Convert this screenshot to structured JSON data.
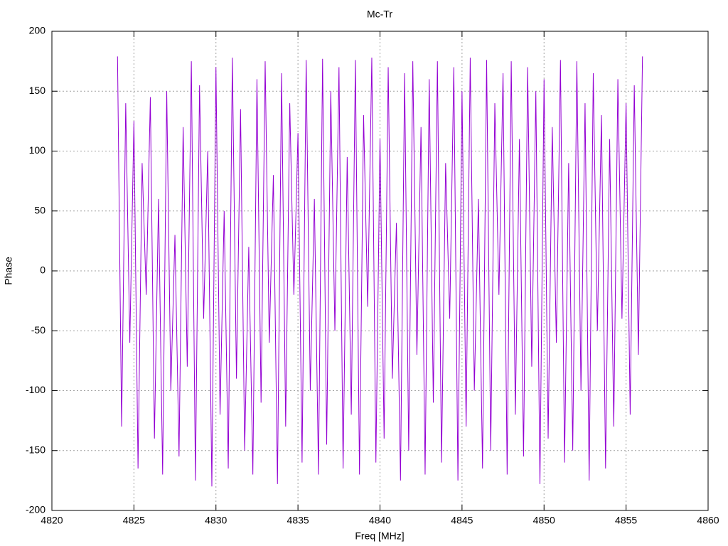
{
  "chart_data": {
    "type": "line",
    "title": "Mc-Tr",
    "x_label": "Freq [MHz]",
    "y_label": "Phase",
    "xlim": [
      4820,
      4860
    ],
    "xticks": [
      4820,
      4825,
      4830,
      4835,
      4840,
      4845,
      4850,
      4855,
      4860
    ],
    "ylim": [
      -200,
      200
    ],
    "yticks": [
      -200,
      -150,
      -100,
      -50,
      0,
      50,
      100,
      150,
      200
    ],
    "grid": true,
    "x": [
      4824,
      4824.25,
      4824.5,
      4824.75,
      4825,
      4825.25,
      4825.5,
      4825.75,
      4826,
      4826.25,
      4826.5,
      4826.75,
      4827,
      4827.25,
      4827.5,
      4827.75,
      4828,
      4828.25,
      4828.5,
      4828.75,
      4829,
      4829.25,
      4829.5,
      4829.75,
      4830,
      4830.25,
      4830.5,
      4830.75,
      4831,
      4831.25,
      4831.5,
      4831.75,
      4832,
      4832.25,
      4832.5,
      4832.75,
      4833,
      4833.25,
      4833.5,
      4833.75,
      4834,
      4834.25,
      4834.5,
      4834.75,
      4835,
      4835.25,
      4835.5,
      4835.75,
      4836,
      4836.25,
      4836.5,
      4836.75,
      4837,
      4837.25,
      4837.5,
      4837.75,
      4838,
      4838.25,
      4838.5,
      4838.75,
      4839,
      4839.25,
      4839.5,
      4839.75,
      4840,
      4840.25,
      4840.5,
      4840.75,
      4841,
      4841.25,
      4841.5,
      4841.75,
      4842,
      4842.25,
      4842.5,
      4842.75,
      4843,
      4843.25,
      4843.5,
      4843.75,
      4844,
      4844.25,
      4844.5,
      4844.75,
      4845,
      4845.25,
      4845.5,
      4845.75,
      4846,
      4846.25,
      4846.5,
      4846.75,
      4847,
      4847.25,
      4847.5,
      4847.75,
      4848,
      4848.25,
      4848.5,
      4848.75,
      4849,
      4849.25,
      4849.5,
      4849.75,
      4850,
      4850.25,
      4850.5,
      4850.75,
      4851,
      4851.25,
      4851.5,
      4851.75,
      4852,
      4852.25,
      4852.5,
      4852.75,
      4853,
      4853.25,
      4853.5,
      4853.75,
      4854,
      4854.25,
      4854.5,
      4854.75,
      4855,
      4855.25,
      4855.5,
      4855.75,
      4856
    ],
    "series": [
      {
        "color": "#9400d3",
        "values": [
          179,
          -130,
          140,
          -60,
          125,
          -165,
          90,
          -20,
          145,
          -140,
          60,
          -170,
          150,
          -100,
          30,
          -155,
          120,
          -80,
          175,
          -175,
          155,
          -40,
          100,
          -180,
          170,
          -120,
          50,
          -165,
          178,
          -90,
          135,
          -150,
          20,
          -170,
          160,
          -110,
          175,
          -60,
          80,
          -178,
          165,
          -130,
          140,
          -20,
          115,
          -160,
          176,
          -100,
          60,
          -170,
          177,
          -145,
          150,
          -50,
          170,
          -165,
          95,
          -120,
          176,
          -170,
          130,
          -30,
          178,
          -160,
          110,
          -140,
          170,
          -90,
          40,
          -175,
          165,
          -150,
          175,
          -70,
          120,
          -170,
          160,
          -110,
          175,
          -160,
          90,
          -40,
          170,
          -175,
          150,
          -130,
          178,
          -100,
          60,
          -165,
          176,
          -150,
          140,
          -20,
          165,
          -170,
          175,
          -120,
          110,
          -155,
          170,
          -80,
          150,
          -178,
          160,
          -140,
          120,
          -60,
          176,
          -160,
          90,
          -150,
          175,
          -100,
          140,
          -175,
          165,
          -50,
          130,
          -165,
          110,
          -130,
          160,
          -40,
          140,
          -120,
          155,
          -70,
          179
        ]
      }
    ]
  }
}
